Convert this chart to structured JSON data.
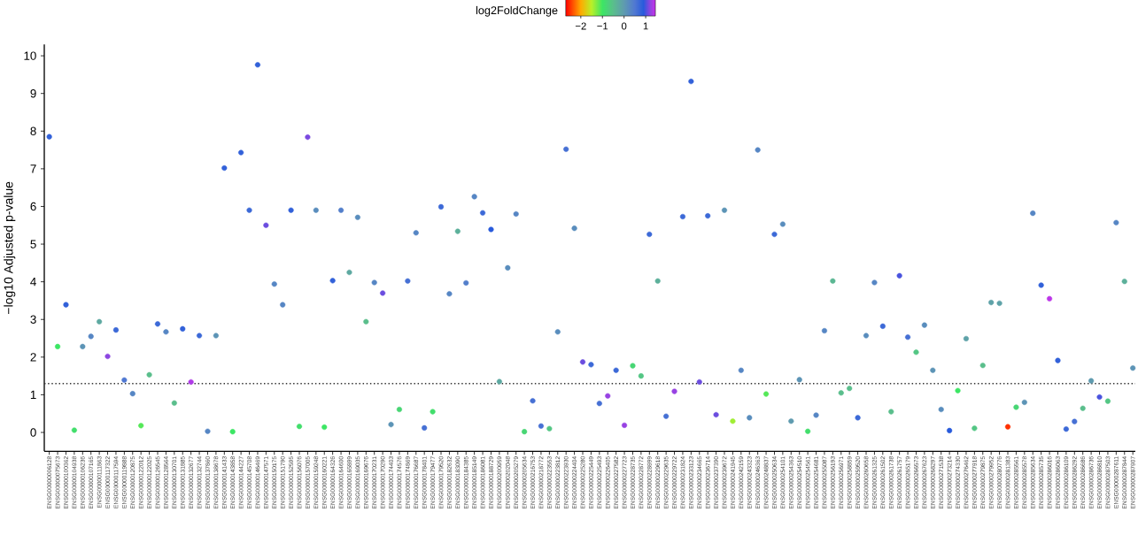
{
  "chart_data": {
    "type": "scatter",
    "ylabel": "−log10 Adjusted p-value",
    "clabel": "log2FoldChange",
    "categories": [
      "ENSG00000006128",
      "ENSG00000075673",
      "ENSG00000100362",
      "ENSG00000104938",
      "ENSG00000106236",
      "ENSG00000107165",
      "ENSG00000111863",
      "ENSG00000117322",
      "ENSG00000117594",
      "ENSG00000119888",
      "ENSG00000120875",
      "ENSG00000122012",
      "ENSG00000122025",
      "ENSG00000126545",
      "ENSG00000128564",
      "ENSG00000130701",
      "ENSG00000131885",
      "ENSG00000132677",
      "ENSG00000132744",
      "ENSG00000137860",
      "ENSG00000138678",
      "ENSG00000141433",
      "ENSG00000143858",
      "ENSG00000144227",
      "ENSG00000145708",
      "ENSG00000146469",
      "ENSG00000147571",
      "ENSG00000150175",
      "ENSG00000151790",
      "ENSG00000152595",
      "ENSG00000156076",
      "ENSG00000157005",
      "ENSG00000159248",
      "ENSG00000160221",
      "ENSG00000164326",
      "ENSG00000164600",
      "ENSG00000165899",
      "ENSG00000169035",
      "ENSG00000169676",
      "ENSG00000170231",
      "ENSG00000170290",
      "ENSG00000174403",
      "ENSG00000174576",
      "ENSG00000174869",
      "ENSG00000176687",
      "ENSG00000178401",
      "ENSG00000179477",
      "ENSG00000179520",
      "ENSG00000182632",
      "ENSG00000183090",
      "ENSG00000184385",
      "ENSG00000185149",
      "ENSG00000186081",
      "ENSG00000188729",
      "ENSG00000200959",
      "ENSG00000202048",
      "ENSG00000205279",
      "ENSG00000205634",
      "ENSG00000216753",
      "ENSG00000218772",
      "ENSG00000223553",
      "ENSG00000223812",
      "ENSG00000223930",
      "ENSG00000224404",
      "ENSG00000225280",
      "ENSG00000225449",
      "ENSG00000225493",
      "ENSG00000226405",
      "ENSG00000227582",
      "ENSG00000227723",
      "ENSG00000228735",
      "ENSG00000228772",
      "ENSG00000228999",
      "ENSG00000229618",
      "ENSG00000229635",
      "ENSG00000229722",
      "ENSG00000231824",
      "ENSG00000233123",
      "ENSG00000234665",
      "ENSG00000236714",
      "ENSG00000237390",
      "ENSG00000239672",
      "ENSG00000241945",
      "ENSG00000242159",
      "ENSG00000243323",
      "ENSG00000246363",
      "ENSG00000248837",
      "ENSG00000250634",
      "ENSG00000254101",
      "ENSG00000254363",
      "ENSG00000254510",
      "ENSG00000254561",
      "ENSG00000254681",
      "ENSG00000255087",
      "ENSG00000256193",
      "ENSG00000256971",
      "ENSG00000258859",
      "ENSG00000259520",
      "ENSG00000260658",
      "ENSG00000261325",
      "ENSG00000261502",
      "ENSG00000261738",
      "ENSG00000261757",
      "ENSG00000265179",
      "ENSG00000266573",
      "ENSG00000267623",
      "ENSG00000268297",
      "ENSG00000271538",
      "ENSG00000273214",
      "ENSG00000274330",
      "ENSG00000276462",
      "ENSG00000277918",
      "ENSG00000279875",
      "ENSG00000279952",
      "ENSG00000280776",
      "ENSG00000281383",
      "ENSG00000285561",
      "ENSG00000285578",
      "ENSG00000285634",
      "ENSG00000285735",
      "ENSG00000286016",
      "ENSG00000286063",
      "ENSG00000286109",
      "ENSG00000286292",
      "ENSG00000286686",
      "ENSG00000286736",
      "ENSG00000286810",
      "ENSG00000287503",
      "ENSG00000287611",
      "ENSG00000287844",
      "ENSG00000287907"
    ],
    "values": [
      7.85,
      2.28,
      3.39,
      0.06,
      2.28,
      2.55,
      2.94,
      2.02,
      2.72,
      1.39,
      1.03,
      0.18,
      1.53,
      2.88,
      2.67,
      0.78,
      2.75,
      1.34,
      2.57,
      0.03,
      2.57,
      7.02,
      0.02,
      7.43,
      5.9,
      9.76,
      5.5,
      3.94,
      3.39,
      5.9,
      0.16,
      7.84,
      5.9,
      0.14,
      4.03,
      5.9,
      4.25,
      5.71,
      2.94,
      3.98,
      3.7,
      0.21,
      0.61,
      4.02,
      5.3,
      0.12,
      0.55,
      5.99,
      3.68,
      5.34,
      3.97,
      6.26,
      5.83,
      5.39,
      1.35,
      4.37,
      5.8,
      0.02,
      0.84,
      0.17,
      0.1,
      2.67,
      7.52,
      5.42,
      1.87,
      1.8,
      0.77,
      0.97,
      1.65,
      0.19,
      1.77,
      1.5,
      5.26,
      4.02,
      0.43,
      1.09,
      5.73,
      9.32,
      1.34,
      5.75,
      0.47,
      5.9,
      0.3,
      1.65,
      0.39,
      7.5,
      1.02,
      5.26,
      5.53,
      0.3,
      1.4,
      0.03,
      0.46,
      2.7,
      4.02,
      1.05,
      1.17,
      0.39,
      2.57,
      3.98,
      2.82,
      0.55,
      4.16,
      2.53,
      2.13,
      2.85,
      1.65,
      0.61,
      0.05,
      1.11,
      2.49,
      0.11,
      1.78,
      3.45,
      3.43,
      0.15,
      0.67,
      0.8,
      5.82,
      3.91,
      3.55,
      1.91,
      0.09,
      0.29,
      0.64,
      1.37,
      0.94,
      0.83,
      5.57,
      4.01,
      1.71
    ],
    "cvalues": [
      0.8,
      -1.0,
      0.8,
      -0.9,
      0.1,
      0.3,
      -0.2,
      1.2,
      0.7,
      0.5,
      0.3,
      -1.1,
      -0.5,
      0.7,
      0.3,
      -0.5,
      0.8,
      1.35,
      0.7,
      0.3,
      0.1,
      0.8,
      -1.0,
      0.8,
      0.7,
      0.8,
      1.1,
      0.3,
      0.3,
      0.8,
      -0.9,
      1.15,
      0.2,
      -1.0,
      0.8,
      0.4,
      -0.2,
      0.2,
      -0.5,
      0.3,
      1.1,
      0.1,
      -0.8,
      0.6,
      0.3,
      0.6,
      -0.9,
      0.7,
      0.3,
      -0.3,
      0.4,
      0.3,
      0.7,
      0.9,
      -0.2,
      0.2,
      0.3,
      -0.8,
      0.6,
      0.6,
      -0.6,
      0.2,
      0.6,
      0.2,
      1.1,
      0.7,
      0.6,
      1.25,
      0.7,
      1.25,
      -0.8,
      -0.6,
      0.7,
      -0.3,
      0.6,
      1.25,
      0.7,
      0.8,
      1.1,
      0.7,
      1.1,
      0.1,
      -1.4,
      0.3,
      0.2,
      0.3,
      -1.1,
      0.7,
      0.2,
      0.0,
      0.1,
      -0.9,
      0.3,
      0.3,
      -0.4,
      -0.5,
      -0.5,
      0.7,
      0.2,
      0.3,
      0.7,
      -0.5,
      1.0,
      0.6,
      -0.6,
      0.2,
      0.1,
      0.2,
      0.9,
      -1.0,
      -0.1,
      -0.6,
      -0.5,
      -0.1,
      -0.1,
      -2.5,
      -0.8,
      0.1,
      0.3,
      0.8,
      1.4,
      0.8,
      0.7,
      0.6,
      -0.5,
      0.0,
      1.0,
      -0.6,
      0.3,
      -0.3,
      0.1
    ],
    "ylim": [
      -0.5,
      10.3
    ],
    "yticks": [
      0,
      1,
      2,
      3,
      4,
      5,
      6,
      7,
      8,
      9,
      10
    ],
    "clim": [
      -2.7,
      1.45
    ],
    "cticks": [
      {
        "value": -2,
        "label": "−2"
      },
      {
        "value": -1,
        "label": "−1"
      },
      0,
      1
    ],
    "ref_lines": [
      {
        "axis": "y",
        "value": 1.3,
        "line_style": "dotted"
      }
    ],
    "marker": "circle"
  }
}
